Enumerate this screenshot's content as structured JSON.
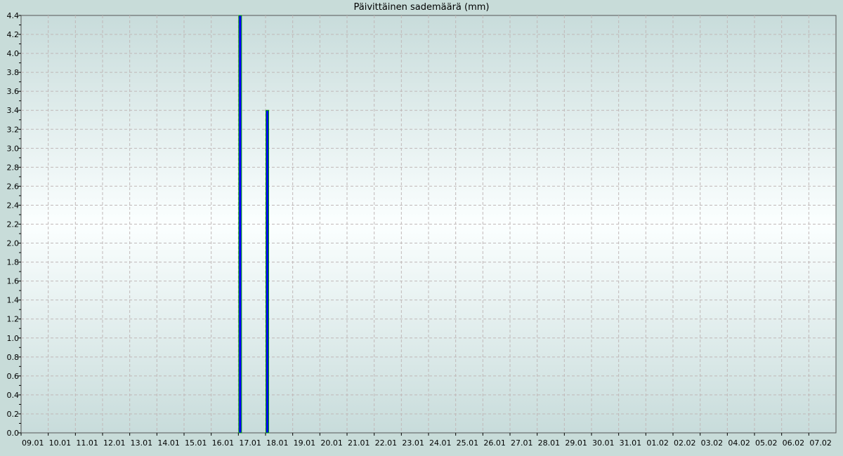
{
  "chart_data": {
    "type": "bar",
    "title": "Päivittäinen sademäärä (mm)",
    "xlabel": "",
    "ylabel": "",
    "ylim": [
      0,
      4.4
    ],
    "ytick_step": 0.2,
    "grid": true,
    "categories": [
      "09.01",
      "10.01",
      "11.01",
      "12.01",
      "13.01",
      "14.01",
      "15.01",
      "16.01",
      "17.01",
      "18.01",
      "19.01",
      "20.01",
      "21.01",
      "22.01",
      "23.01",
      "24.01",
      "25.01",
      "26.01",
      "27.01",
      "28.01",
      "29.01",
      "30.01",
      "31.01",
      "01.02",
      "02.02",
      "03.02",
      "04.02",
      "05.02",
      "06.02",
      "07.02"
    ],
    "values": [
      0,
      0,
      0,
      0,
      0,
      0,
      0,
      0,
      4.4,
      3.4,
      0,
      0,
      0,
      0,
      0,
      0,
      0,
      0,
      0,
      0,
      0,
      0,
      0,
      0,
      0,
      0,
      0,
      0,
      0,
      0
    ],
    "colors": {
      "bar_fill": "#0000ff",
      "bar_edge": "#00a000",
      "grid": "#c0b8b8",
      "background_edge": "#c8dcdb",
      "background_center": "#fbffff"
    }
  }
}
